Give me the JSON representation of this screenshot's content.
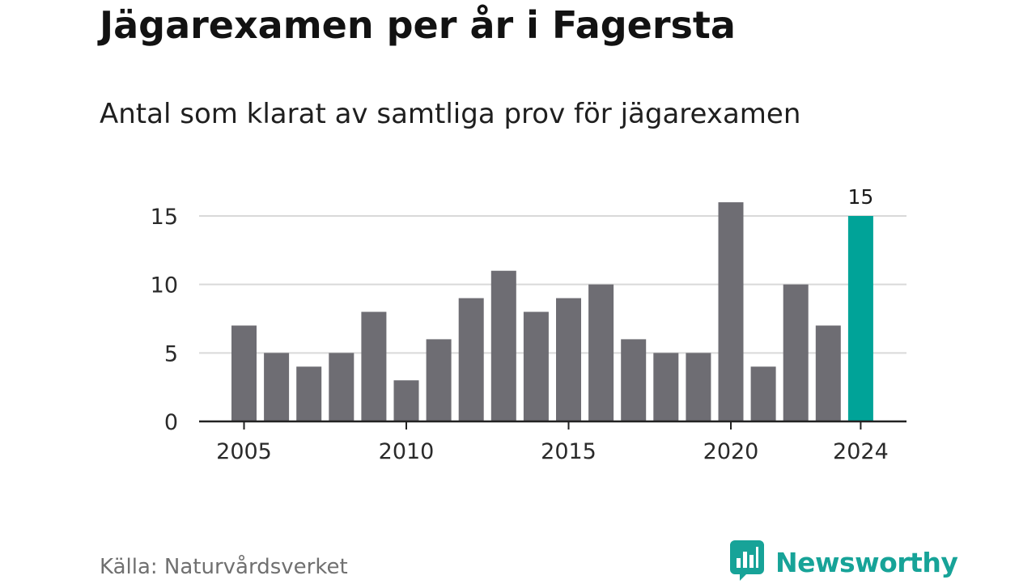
{
  "title": "Jägarexamen per år i Fagersta",
  "subtitle": "Antal som klarat av samtliga prov för jägarexamen",
  "source": "Källa: Naturvårdsverket",
  "brand": {
    "name": "Newsworthy",
    "icon": "newsworthy-logo-icon",
    "color": "#17a398"
  },
  "colors": {
    "bar": "#6e6d73",
    "highlight": "#00a398",
    "grid": "#d9d9d9",
    "axis": "#222222"
  },
  "chart_data": {
    "type": "bar",
    "categories": [
      2005,
      2006,
      2007,
      2008,
      2009,
      2010,
      2011,
      2012,
      2013,
      2014,
      2015,
      2016,
      2017,
      2018,
      2019,
      2020,
      2021,
      2022,
      2023,
      2024
    ],
    "values": [
      7,
      5,
      4,
      5,
      8,
      3,
      6,
      9,
      11,
      8,
      9,
      10,
      6,
      5,
      5,
      16,
      4,
      10,
      7,
      15
    ],
    "highlight": 2024,
    "data_labels": [
      {
        "x": 2024,
        "text": "15"
      }
    ],
    "x_ticks": [
      2005,
      2010,
      2015,
      2020,
      2024
    ],
    "y_ticks": [
      0,
      5,
      10,
      15
    ],
    "ylim": [
      0,
      16
    ],
    "grid": true,
    "xlabel": "",
    "ylabel": ""
  }
}
